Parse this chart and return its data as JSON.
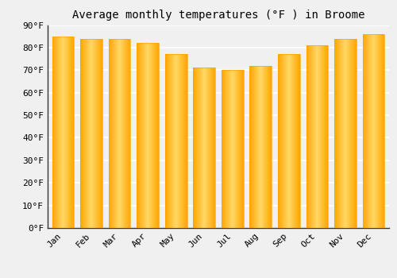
{
  "title": "Average monthly temperatures (°F ) in Broome",
  "months": [
    "Jan",
    "Feb",
    "Mar",
    "Apr",
    "May",
    "Jun",
    "Jul",
    "Aug",
    "Sep",
    "Oct",
    "Nov",
    "Dec"
  ],
  "values": [
    85,
    84,
    84,
    82,
    77,
    71,
    70,
    72,
    77,
    81,
    84,
    86
  ],
  "bar_color_center": "#FFD060",
  "bar_color_edge": "#FFA500",
  "ylim": [
    0,
    90
  ],
  "yticks": [
    0,
    10,
    20,
    30,
    40,
    50,
    60,
    70,
    80,
    90
  ],
  "ytick_labels": [
    "0°F",
    "10°F",
    "20°F",
    "30°F",
    "40°F",
    "50°F",
    "60°F",
    "70°F",
    "80°F",
    "90°F"
  ],
  "bg_color": "#f0f0f0",
  "grid_color": "#ffffff",
  "title_fontsize": 10,
  "tick_fontsize": 8
}
